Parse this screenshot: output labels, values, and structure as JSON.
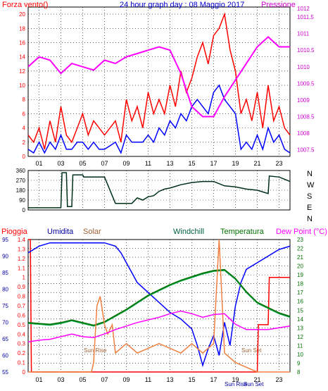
{
  "chart_data": [
    {
      "type": "line",
      "title": "24 hour graph day : 08 Maggio 2017",
      "left_axis_label": "Forza vento()",
      "right_axis_label": "Pressione",
      "x_tick_labels": [
        "01",
        "03",
        "05",
        "07",
        "09",
        "11",
        "13",
        "15",
        "17",
        "19",
        "21",
        "23"
      ],
      "x_ticks": [
        1,
        3,
        5,
        7,
        9,
        11,
        13,
        15,
        17,
        19,
        21,
        23
      ],
      "xlim": [
        0,
        24
      ],
      "ylim_left": [
        0,
        21
      ],
      "yticks_left": [
        0,
        2,
        4,
        6,
        8,
        10,
        12,
        14,
        16,
        18,
        20
      ],
      "ylim_right": [
        1007.3,
        1011.8
      ],
      "yticks_right": [
        1007.5,
        1008,
        1008.5,
        1009,
        1009.5,
        1010,
        1010.5,
        1011,
        1011.5
      ],
      "yticks_right_labels": [
        "1007.5",
        "1008",
        "1008.5",
        "1009",
        "1009.5",
        "1010",
        "1010.5",
        "1011",
        "1011.5"
      ],
      "extra_right_label": "1012",
      "grid": true,
      "series": [
        {
          "axis": "left",
          "color": "#ff0000",
          "x": [
            0,
            0.5,
            1,
            1.5,
            2,
            2.5,
            3,
            3.5,
            4,
            4.5,
            5,
            5.5,
            6,
            6.5,
            7,
            7.5,
            8,
            8.5,
            9,
            9.5,
            10,
            10.5,
            11,
            11.5,
            12,
            12.5,
            13,
            13.5,
            14,
            14.5,
            15,
            15.5,
            16,
            16.5,
            17,
            17.5,
            18,
            18.5,
            19,
            19.5,
            20,
            20.5,
            21,
            21.5,
            22,
            22.5,
            23,
            23.5,
            24
          ],
          "values": [
            3,
            2,
            4,
            1,
            5,
            2,
            7,
            3,
            2,
            4,
            6,
            3,
            5,
            4,
            3,
            4,
            5,
            2,
            8,
            5,
            7,
            4,
            9,
            6,
            8,
            6,
            10,
            7,
            12,
            9,
            11,
            14,
            16,
            13,
            17,
            18,
            20,
            15,
            12,
            6,
            8,
            5,
            9,
            4,
            10,
            5,
            7,
            4,
            3
          ]
        },
        {
          "axis": "left",
          "color": "#0000ff",
          "x": [
            0,
            0.5,
            1,
            1.5,
            2,
            2.5,
            3,
            3.5,
            4,
            4.5,
            5,
            5.5,
            6,
            6.5,
            7,
            7.5,
            8,
            8.5,
            9,
            9.5,
            10,
            10.5,
            11,
            11.5,
            12,
            12.5,
            13,
            13.5,
            14,
            14.5,
            15,
            15.5,
            16,
            16.5,
            17,
            17.5,
            18,
            18.5,
            19,
            19.5,
            20,
            20.5,
            21,
            21.5,
            22,
            22.5,
            23,
            23.5,
            24
          ],
          "values": [
            1,
            0.5,
            2,
            0.5,
            2,
            1,
            3,
            1,
            1,
            2,
            2,
            1,
            2,
            1,
            1,
            1.5,
            2,
            0.5,
            3,
            2,
            2,
            2,
            3,
            2,
            4,
            3,
            5,
            4,
            6,
            5,
            7,
            8,
            7,
            6,
            9,
            10,
            8,
            7,
            6,
            1,
            2,
            1,
            3,
            1,
            4,
            2,
            3,
            1,
            0.5
          ]
        },
        {
          "axis": "right",
          "color": "#ff00ff",
          "x": [
            0,
            1,
            2,
            3,
            4,
            5,
            6,
            7,
            8,
            9,
            10,
            11,
            12,
            13,
            14,
            15,
            16,
            17,
            18,
            19,
            20,
            21,
            22,
            23,
            24
          ],
          "values": [
            1010.0,
            1010.3,
            1010.2,
            1009.8,
            1010.1,
            1010.0,
            1009.9,
            1010.2,
            1010.1,
            1010.3,
            1010.4,
            1010.5,
            1010.6,
            1010.5,
            1009.8,
            1008.8,
            1008.5,
            1008.5,
            1009.1,
            1009.6,
            1010.1,
            1010.6,
            1010.9,
            1010.6,
            1010.6
          ]
        }
      ]
    },
    {
      "type": "line",
      "title": "",
      "y_tick_labels": [
        "360",
        "270",
        "180",
        "90",
        "0"
      ],
      "y_ticks": [
        360,
        270,
        180,
        90,
        0
      ],
      "ylim": [
        0,
        360
      ],
      "compass_labels": [
        "N",
        "W",
        "S",
        "E",
        "N"
      ],
      "xlim": [
        0,
        24
      ],
      "series": [
        {
          "color": "#003018",
          "x": [
            0,
            1,
            2,
            3,
            3.1,
            3.5,
            3.6,
            4,
            4.1,
            5,
            5.1,
            6,
            7,
            8,
            8.5,
            9,
            9.5,
            10,
            10.5,
            11,
            11.5,
            12,
            12.5,
            13,
            14,
            15,
            16,
            17,
            18,
            19,
            20,
            21,
            22,
            22.1,
            23,
            23.5,
            24
          ],
          "values": [
            20,
            20,
            20,
            20,
            340,
            340,
            30,
            30,
            320,
            320,
            300,
            300,
            300,
            60,
            60,
            60,
            60,
            110,
            90,
            120,
            130,
            170,
            190,
            200,
            230,
            250,
            260,
            260,
            220,
            210,
            190,
            180,
            150,
            310,
            300,
            280,
            260
          ]
        }
      ]
    },
    {
      "type": "line",
      "title": "",
      "legend": [
        "Pioggia",
        "Umidita",
        "Solar",
        "Windchill",
        "Temperatura",
        "Dew Point (°C)"
      ],
      "legend_colors": [
        "#ff0000",
        "#0000a0",
        "#a06030",
        "#007040",
        "#007000",
        "#ff00ff"
      ],
      "ylim_left": [
        55,
        95
      ],
      "yticks_left": [
        55,
        60,
        65,
        70,
        75,
        80,
        85,
        90,
        95
      ],
      "yticks_left_labels": [
        "55",
        "60",
        "65",
        "70",
        "75",
        "80",
        "85",
        "90",
        "95"
      ],
      "ylim_rain": [
        0,
        1.4
      ],
      "yticks_rain": [
        0,
        0.1,
        0.2,
        0.3,
        0.4,
        0.5,
        0.6,
        0.7,
        0.8,
        0.9,
        1,
        1.1,
        1.2,
        1.3,
        1.4
      ],
      "yticks_rain_labels": [
        "0",
        "0.1",
        "0.2",
        "0.3",
        "0.4",
        "0.5",
        "0.6",
        "0.7",
        "0.8",
        "0.9",
        "1",
        "1.1",
        "1.2",
        "1.3",
        "1.4"
      ],
      "ylim_right": [
        8,
        23
      ],
      "yticks_right": [
        8,
        9,
        10,
        11,
        12,
        13,
        14,
        15,
        16,
        17,
        18,
        19,
        20,
        21,
        22,
        23
      ],
      "yticks_right_labels": [
        "8",
        "9",
        "10",
        "11",
        "12",
        "13",
        "14",
        "15",
        "16",
        "17",
        "18",
        "19",
        "20",
        "21",
        "22",
        "23"
      ],
      "x_tick_labels": [
        "01",
        "03",
        "05",
        "07",
        "09",
        "11",
        "13",
        "15",
        "17",
        "19",
        "21",
        "23"
      ],
      "x_ticks": [
        1,
        3,
        5,
        7,
        9,
        11,
        13,
        15,
        17,
        19,
        21,
        23
      ],
      "xlim": [
        0,
        24
      ],
      "annotations": [
        "Sun Rise",
        "Sun Set",
        "Sun Rise",
        "Sun Set"
      ],
      "series": [
        {
          "name": "Pioggia",
          "axis": "rain",
          "color": "#ff0000",
          "x": [
            0,
            0.2,
            0.3,
            1,
            5,
            10,
            15,
            19.3,
            21,
            21.1,
            22,
            22.1,
            24
          ],
          "values": [
            1.4,
            1.4,
            0,
            0,
            0,
            0,
            0,
            0,
            0,
            0.5,
            0.5,
            1.0,
            1.0
          ]
        },
        {
          "name": "Umidita",
          "axis": "left",
          "color": "#0000ff",
          "x": [
            0,
            1,
            2,
            3,
            4,
            5,
            6,
            7,
            8,
            8.5,
            9,
            9.5,
            10,
            11,
            12,
            13,
            14,
            15,
            15.5,
            16,
            16.5,
            17,
            17.5,
            18,
            18.5,
            19,
            19.5,
            20,
            21,
            22,
            23,
            24
          ],
          "values": [
            91,
            93,
            94,
            94,
            94,
            94,
            94,
            94,
            93,
            91,
            88,
            85,
            82,
            79,
            76,
            73,
            71,
            68,
            63,
            57,
            62,
            66,
            60,
            70,
            63,
            75,
            82,
            86,
            88,
            90,
            92,
            93
          ]
        },
        {
          "name": "Windchill",
          "axis": "right",
          "color": "#00a040",
          "x": [
            0,
            1,
            2,
            3,
            4,
            5,
            6,
            7,
            8,
            9,
            10,
            11,
            12,
            13,
            14,
            15,
            16,
            17,
            18,
            19,
            20,
            21,
            22,
            23,
            24
          ],
          "values": [
            13.5,
            13.4,
            13.3,
            13.5,
            13.8,
            13.5,
            13.2,
            13.6,
            14.3,
            15.0,
            15.8,
            16.6,
            17.2,
            17.8,
            18.3,
            18.7,
            19.1,
            19.4,
            19.5,
            18.5,
            17.0,
            15.8,
            15.2,
            14.6,
            14.2
          ]
        },
        {
          "name": "Temperatura",
          "axis": "right",
          "color": "#007000",
          "x": [
            0,
            1,
            2,
            3,
            4,
            5,
            6,
            7,
            8,
            9,
            10,
            11,
            12,
            13,
            14,
            15,
            16,
            17,
            18,
            19,
            20,
            21,
            22,
            23,
            24
          ],
          "values": [
            13.6,
            13.5,
            13.4,
            13.6,
            13.9,
            13.6,
            13.3,
            13.7,
            14.4,
            15.1,
            15.9,
            16.7,
            17.3,
            17.9,
            18.4,
            18.8,
            19.2,
            19.5,
            19.6,
            18.6,
            17.1,
            15.9,
            15.3,
            14.7,
            14.3
          ]
        },
        {
          "name": "Solar",
          "axis": "rain",
          "color": "#f08040",
          "x": [
            0,
            5.8,
            6,
            6.3,
            6.6,
            7,
            7.3,
            7.7,
            8,
            9,
            10,
            11,
            12,
            13,
            14,
            15,
            16,
            17,
            17.5,
            18,
            18.5,
            19,
            20,
            21,
            24
          ],
          "values": [
            0,
            0,
            0.1,
            0.7,
            0.8,
            0.5,
            0.4,
            0.5,
            0.2,
            0.3,
            0.2,
            0.25,
            0.3,
            0.25,
            0.2,
            0.3,
            0.2,
            0.3,
            1.4,
            0.2,
            0.15,
            0.1,
            0.05,
            0,
            0
          ]
        },
        {
          "name": "Dew Point (°C)",
          "axis": "right",
          "color": "#ff00ff",
          "x": [
            0,
            1,
            2,
            3,
            4,
            5,
            6,
            7,
            8,
            9,
            10,
            11,
            12,
            13,
            14,
            15,
            16,
            17,
            18,
            19,
            20,
            21,
            22,
            23,
            24
          ],
          "values": [
            11.4,
            11.6,
            11.7,
            12.0,
            12.3,
            12.0,
            11.9,
            12.3,
            12.8,
            13.2,
            13.6,
            13.9,
            14.2,
            14.6,
            14.9,
            14.6,
            14.2,
            14.5,
            14.6,
            13.4,
            12.8,
            12.8,
            12.8,
            13.0,
            13.2
          ]
        }
      ]
    }
  ]
}
